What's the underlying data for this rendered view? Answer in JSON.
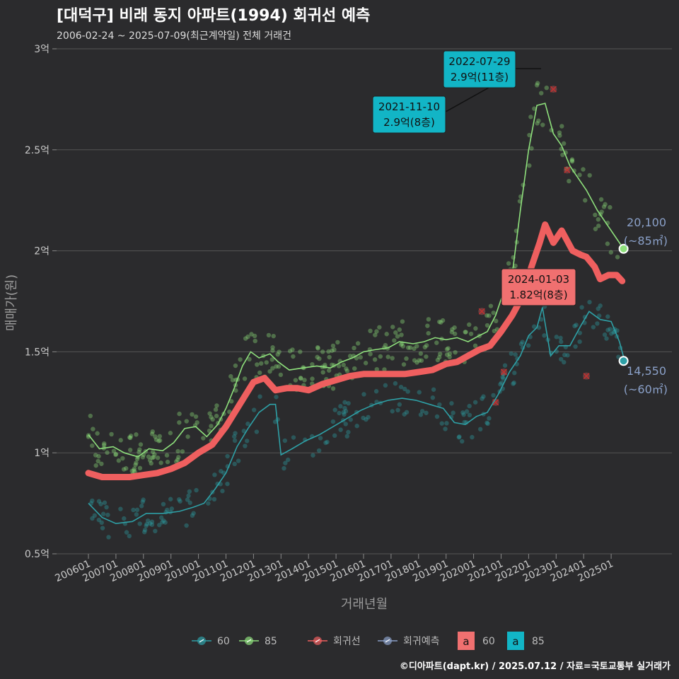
{
  "title": "[대덕구] 비래 동지 아파트(1994) 회귀선 예측",
  "subtitle": "2006-02-24 ~ 2025-07-09(최근계약일) 전체 거래건",
  "credit": "©디아파트(dapt.kr) / 2025.07.12 / 자료=국토교통부 실거래가",
  "colors": {
    "background": "#2b2b2d",
    "grid": "#555555",
    "s60": "#2ea0a6",
    "s85": "#8ee07c",
    "regression": "#ef5f5f",
    "forecast": "#8aa0c8",
    "label_cyan": "#12b5c6",
    "label_red": "#f07070"
  },
  "chart_data": {
    "type": "line",
    "xlabel": "거래년월",
    "ylabel": "매매가(원)",
    "ylim": [
      0.5,
      3.0
    ],
    "y_ticks": [
      0.5,
      1.0,
      1.5,
      2.0,
      2.5,
      3.0
    ],
    "y_tick_labels": [
      "0.5억",
      "1억",
      "1.5억",
      "2억",
      "2.5억",
      "3억"
    ],
    "x_ticks": [
      "200601",
      "200701",
      "200801",
      "200901",
      "201001",
      "201101",
      "201201",
      "201301",
      "201401",
      "201501",
      "201601",
      "201701",
      "201801",
      "201901",
      "202001",
      "202101",
      "202201",
      "202301",
      "202401",
      "202501"
    ],
    "legend": {
      "items": [
        {
          "label": "60",
          "color": "#2ea0a6"
        },
        {
          "label": "85",
          "color": "#8ee07c"
        },
        {
          "label": "회귀선",
          "color": "#ef5f5f"
        },
        {
          "label": "회귀예측",
          "color": "#8aa0c8"
        }
      ],
      "box_items": [
        {
          "glyph": "a",
          "label": "60",
          "color": "#f07070"
        },
        {
          "glyph": "a",
          "label": "85",
          "color": "#12b5c6"
        }
      ]
    },
    "series": [
      {
        "name": "85",
        "line": [
          [
            2006.0,
            1.09
          ],
          [
            2006.4,
            1.02
          ],
          [
            2006.9,
            1.03
          ],
          [
            2007.3,
            1.0
          ],
          [
            2007.8,
            0.98
          ],
          [
            2008.2,
            1.02
          ],
          [
            2008.7,
            1.01
          ],
          [
            2009.1,
            1.05
          ],
          [
            2009.5,
            1.12
          ],
          [
            2009.9,
            1.13
          ],
          [
            2010.3,
            1.08
          ],
          [
            2010.7,
            1.14
          ],
          [
            2011.0,
            1.22
          ],
          [
            2011.3,
            1.32
          ],
          [
            2011.6,
            1.43
          ],
          [
            2011.9,
            1.5
          ],
          [
            2012.2,
            1.47
          ],
          [
            2012.6,
            1.49
          ],
          [
            2012.9,
            1.45
          ],
          [
            2013.3,
            1.41
          ],
          [
            2013.8,
            1.42
          ],
          [
            2014.3,
            1.43
          ],
          [
            2014.8,
            1.42
          ],
          [
            2015.2,
            1.45
          ],
          [
            2015.6,
            1.47
          ],
          [
            2016.0,
            1.5
          ],
          [
            2016.4,
            1.51
          ],
          [
            2016.9,
            1.52
          ],
          [
            2017.3,
            1.55
          ],
          [
            2017.8,
            1.54
          ],
          [
            2018.2,
            1.55
          ],
          [
            2018.6,
            1.57
          ],
          [
            2019.0,
            1.56
          ],
          [
            2019.4,
            1.57
          ],
          [
            2019.8,
            1.55
          ],
          [
            2020.2,
            1.58
          ],
          [
            2020.5,
            1.6
          ],
          [
            2020.8,
            1.68
          ],
          [
            2021.1,
            1.8
          ],
          [
            2021.4,
            1.88
          ],
          [
            2021.7,
            2.2
          ],
          [
            2022.0,
            2.5
          ],
          [
            2022.3,
            2.72
          ],
          [
            2022.6,
            2.73
          ],
          [
            2022.9,
            2.58
          ],
          [
            2023.2,
            2.52
          ],
          [
            2023.5,
            2.42
          ],
          [
            2023.8,
            2.36
          ],
          [
            2024.1,
            2.3
          ],
          [
            2024.5,
            2.2
          ],
          [
            2024.9,
            2.12
          ],
          [
            2025.2,
            2.06
          ],
          [
            2025.4,
            2.02
          ]
        ]
      },
      {
        "name": "60",
        "line": [
          [
            2006.0,
            0.75
          ],
          [
            2006.5,
            0.68
          ],
          [
            2007.0,
            0.65
          ],
          [
            2007.6,
            0.66
          ],
          [
            2008.1,
            0.7
          ],
          [
            2008.7,
            0.7
          ],
          [
            2009.3,
            0.71
          ],
          [
            2009.8,
            0.73
          ],
          [
            2010.2,
            0.75
          ],
          [
            2010.6,
            0.82
          ],
          [
            2011.0,
            0.9
          ],
          [
            2011.4,
            1.03
          ],
          [
            2011.8,
            1.12
          ],
          [
            2012.2,
            1.2
          ],
          [
            2012.6,
            1.24
          ],
          [
            2012.8,
            1.24
          ],
          [
            2013.0,
            0.99
          ],
          [
            2013.4,
            1.02
          ],
          [
            2013.9,
            1.06
          ],
          [
            2014.4,
            1.09
          ],
          [
            2014.9,
            1.13
          ],
          [
            2015.4,
            1.17
          ],
          [
            2015.9,
            1.21
          ],
          [
            2016.4,
            1.24
          ],
          [
            2016.9,
            1.26
          ],
          [
            2017.4,
            1.27
          ],
          [
            2017.9,
            1.26
          ],
          [
            2018.4,
            1.24
          ],
          [
            2018.9,
            1.22
          ],
          [
            2019.3,
            1.15
          ],
          [
            2019.7,
            1.14
          ],
          [
            2020.1,
            1.18
          ],
          [
            2020.5,
            1.2
          ],
          [
            2020.9,
            1.29
          ],
          [
            2021.3,
            1.4
          ],
          [
            2021.7,
            1.48
          ],
          [
            2022.0,
            1.58
          ],
          [
            2022.3,
            1.62
          ],
          [
            2022.5,
            1.72
          ],
          [
            2022.8,
            1.48
          ],
          [
            2023.1,
            1.53
          ],
          [
            2023.5,
            1.53
          ],
          [
            2023.9,
            1.63
          ],
          [
            2024.2,
            1.7
          ],
          [
            2024.6,
            1.66
          ],
          [
            2025.0,
            1.65
          ],
          [
            2025.3,
            1.55
          ],
          [
            2025.5,
            1.45
          ]
        ]
      },
      {
        "name": "회귀선",
        "line": [
          [
            2006.0,
            0.9
          ],
          [
            2006.5,
            0.88
          ],
          [
            2007.0,
            0.88
          ],
          [
            2007.5,
            0.88
          ],
          [
            2008.0,
            0.89
          ],
          [
            2008.5,
            0.9
          ],
          [
            2009.0,
            0.92
          ],
          [
            2009.5,
            0.95
          ],
          [
            2010.0,
            1.0
          ],
          [
            2010.5,
            1.04
          ],
          [
            2011.0,
            1.13
          ],
          [
            2011.5,
            1.24
          ],
          [
            2012.0,
            1.35
          ],
          [
            2012.4,
            1.37
          ],
          [
            2012.8,
            1.31
          ],
          [
            2013.2,
            1.32
          ],
          [
            2013.6,
            1.32
          ],
          [
            2014.0,
            1.31
          ],
          [
            2014.5,
            1.34
          ],
          [
            2015.0,
            1.36
          ],
          [
            2015.5,
            1.38
          ],
          [
            2016.0,
            1.39
          ],
          [
            2016.5,
            1.39
          ],
          [
            2017.0,
            1.39
          ],
          [
            2017.5,
            1.39
          ],
          [
            2018.0,
            1.4
          ],
          [
            2018.5,
            1.41
          ],
          [
            2019.0,
            1.44
          ],
          [
            2019.4,
            1.45
          ],
          [
            2019.8,
            1.48
          ],
          [
            2020.2,
            1.51
          ],
          [
            2020.6,
            1.53
          ],
          [
            2021.0,
            1.6
          ],
          [
            2021.4,
            1.68
          ],
          [
            2021.8,
            1.78
          ],
          [
            2022.1,
            1.92
          ],
          [
            2022.4,
            2.04
          ],
          [
            2022.6,
            2.13
          ],
          [
            2022.9,
            2.04
          ],
          [
            2023.2,
            2.1
          ],
          [
            2023.6,
            2.0
          ],
          [
            2023.9,
            1.98
          ],
          [
            2024.1,
            1.97
          ],
          [
            2024.4,
            1.92
          ],
          [
            2024.6,
            1.86
          ],
          [
            2024.9,
            1.88
          ],
          [
            2025.2,
            1.88
          ],
          [
            2025.4,
            1.85
          ]
        ]
      }
    ],
    "end_points": [
      {
        "series": "85",
        "x": 2025.45,
        "y": 2.01
      },
      {
        "series": "60",
        "x": 2025.45,
        "y": 1.455
      }
    ],
    "annotations": [
      {
        "date": "2022-07-29",
        "value": "2.9억(11층)"
      },
      {
        "date": "2021-11-10",
        "value": "2.9억(8층)"
      },
      {
        "date": "2024-01-03",
        "value": "1.82억(8층)"
      }
    ],
    "end_labels": [
      {
        "value": "20,100",
        "area": "(~85㎡)"
      },
      {
        "value": "14,550",
        "area": "(~60㎡)"
      }
    ]
  }
}
